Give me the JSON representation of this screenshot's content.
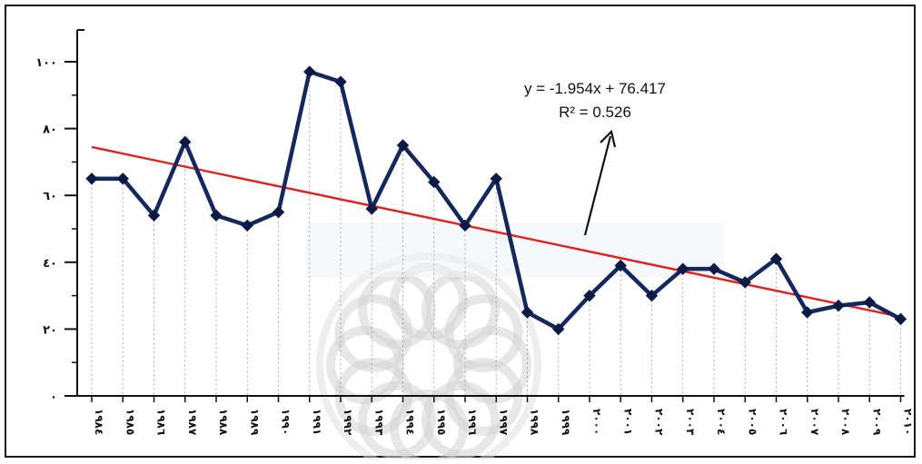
{
  "chart_data": {
    "type": "line",
    "title": "",
    "xlabel": "",
    "ylabel": "",
    "categories": [
      "۱۹۸٤",
      "۱۹۸٥",
      "۱۹۸٦",
      "۱۹۸۷",
      "۱۹۸۸",
      "۱۹۸۹",
      "۱۹۹۰",
      "۱۹۹۱",
      "۱۹۹۲",
      "۱۹۹۳",
      "۱۹۹٤",
      "۱۹۹٥",
      "۱۹۹٦",
      "۱۹۹۷",
      "۱۹۹۸",
      "۱۹۹۹",
      "۲۰۰۰",
      "۲۰۰۱",
      "۲۰۰۲",
      "۲۰۰۳",
      "۲۰۰٤",
      "۲۰۰٥",
      "۲۰۰٦",
      "۲۰۰۷",
      "۲۰۰۸",
      "۲۰۰۹",
      "۲۰۱۰"
    ],
    "series": [
      {
        "values": [
          65,
          65,
          54,
          76,
          54,
          51,
          55,
          97,
          94,
          56,
          75,
          64,
          51,
          65,
          25,
          20,
          30,
          39,
          30,
          38,
          38,
          34,
          41,
          25,
          27,
          28,
          23
        ],
        "color": "#14285e",
        "marker": "diamond"
      }
    ],
    "trendline": {
      "equation": "y = -1.954x + 76.417",
      "r_squared": "R² = 0.526",
      "slope": -1.954,
      "intercept": 76.417,
      "color": "#e02020"
    },
    "yticks": [
      "۰",
      "۲۰",
      "٤۰",
      "٦۰",
      "۸۰",
      "۱۰۰"
    ],
    "ytick_values": [
      0,
      20,
      40,
      60,
      80,
      100
    ],
    "ylim": [
      0,
      108
    ],
    "grid": "vertical dotted lines at each category"
  }
}
